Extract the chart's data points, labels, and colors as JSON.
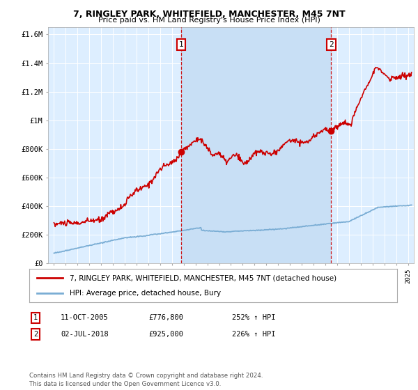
{
  "title": "7, RINGLEY PARK, WHITEFIELD, MANCHESTER, M45 7NT",
  "subtitle": "Price paid vs. HM Land Registry's House Price Index (HPI)",
  "legend_line1": "7, RINGLEY PARK, WHITEFIELD, MANCHESTER, M45 7NT (detached house)",
  "legend_line2": "HPI: Average price, detached house, Bury",
  "sale1_date": "11-OCT-2005",
  "sale1_price": 776800,
  "sale1_hpi": "252% ↑ HPI",
  "sale1_year": 2005.78,
  "sale2_date": "02-JUL-2018",
  "sale2_price": 925000,
  "sale2_hpi": "226% ↑ HPI",
  "sale2_year": 2018.5,
  "footer": "Contains HM Land Registry data © Crown copyright and database right 2024.\nThis data is licensed under the Open Government Licence v3.0.",
  "hpi_color": "#7aadd4",
  "house_color": "#cc0000",
  "dashed_color": "#cc0000",
  "background_plot": "#ddeeff",
  "background_shaded": "#c8dff5",
  "background_fig": "#ffffff",
  "grid_color": "#ffffff",
  "ylim": [
    0,
    1650000
  ],
  "xlim_start": 1994.5,
  "xlim_end": 2025.5
}
